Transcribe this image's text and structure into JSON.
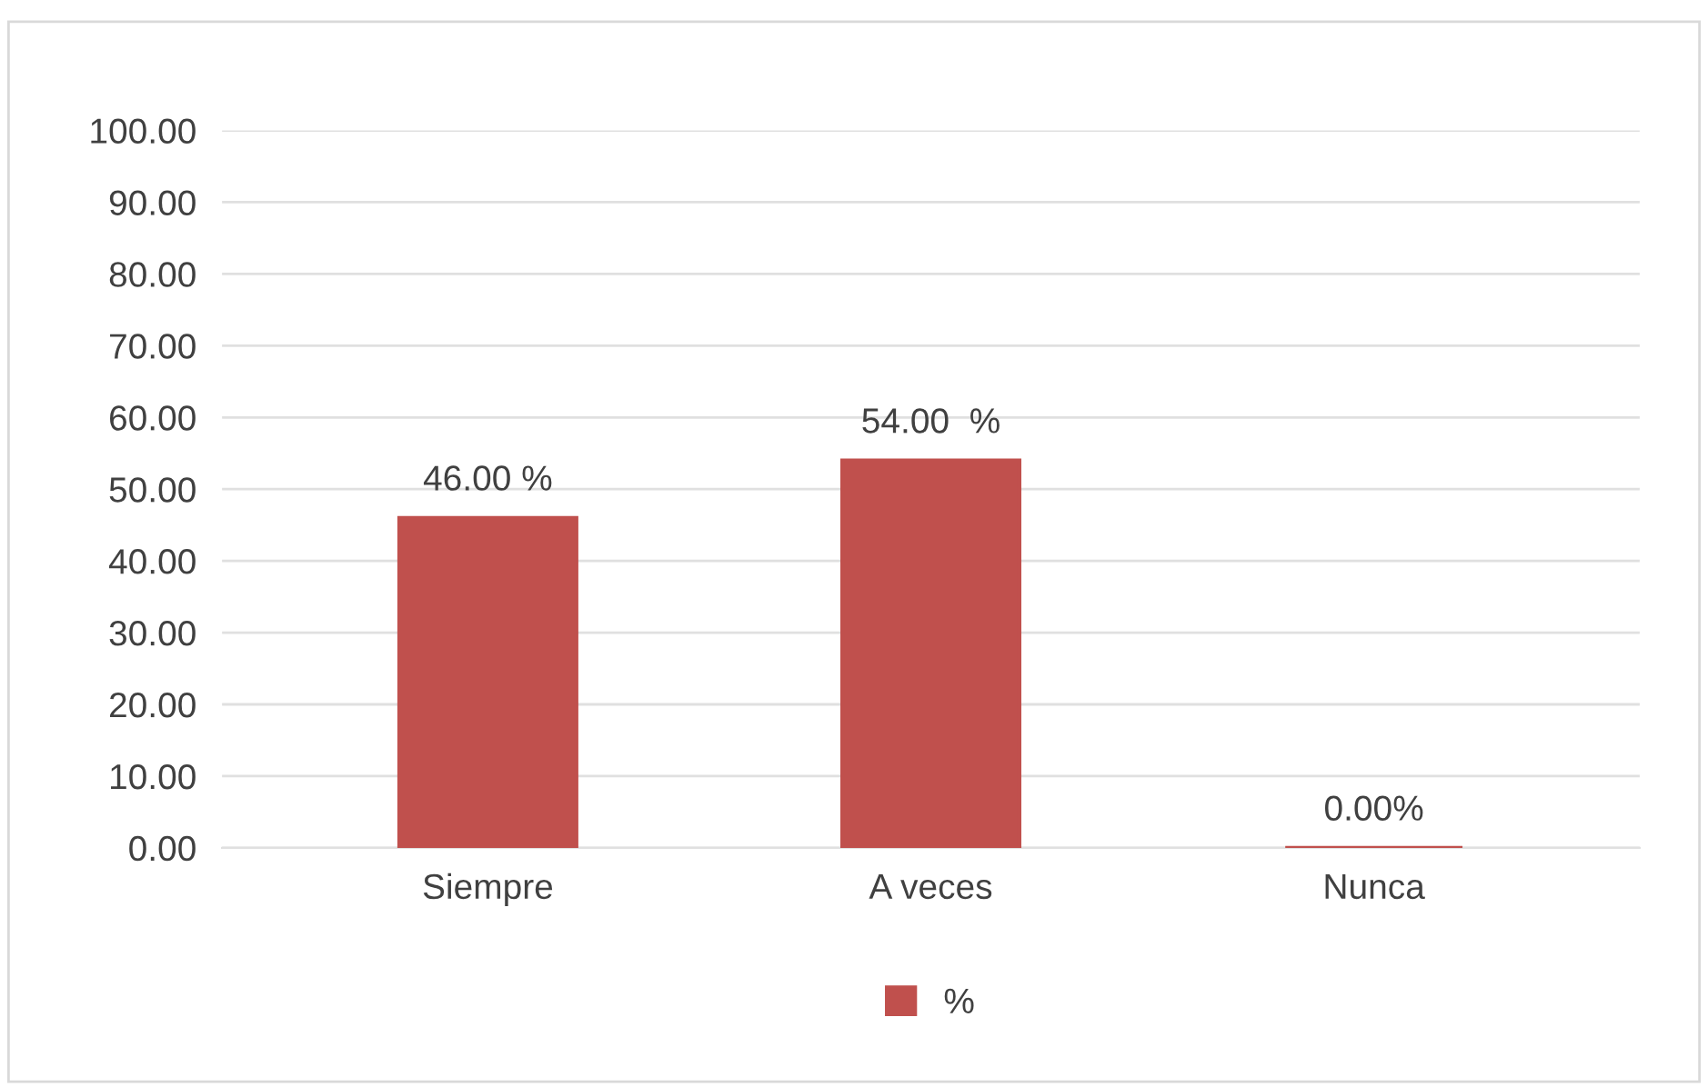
{
  "chart_data": {
    "type": "bar",
    "categories": [
      "Siempre",
      "A veces",
      "Nunca"
    ],
    "series": [
      {
        "name": "%",
        "color": "#c0504d",
        "values": [
          46,
          54,
          0
        ],
        "value_labels": [
          "46.00 %",
          "54.00  %",
          "0.00%"
        ]
      }
    ],
    "ylim": [
      0,
      100
    ],
    "yticks": [
      {
        "value": 0,
        "label": "0.00"
      },
      {
        "value": 10,
        "label": "10.00"
      },
      {
        "value": 20,
        "label": "20.00"
      },
      {
        "value": 30,
        "label": "30.00"
      },
      {
        "value": 40,
        "label": "40.00"
      },
      {
        "value": 50,
        "label": "50.00"
      },
      {
        "value": 60,
        "label": "60.00"
      },
      {
        "value": 70,
        "label": "70.00"
      },
      {
        "value": 80,
        "label": "80.00"
      },
      {
        "value": 90,
        "label": "90.00"
      },
      {
        "value": 100,
        "label": "100.00"
      }
    ],
    "grid": "y",
    "legend": "bottom"
  }
}
